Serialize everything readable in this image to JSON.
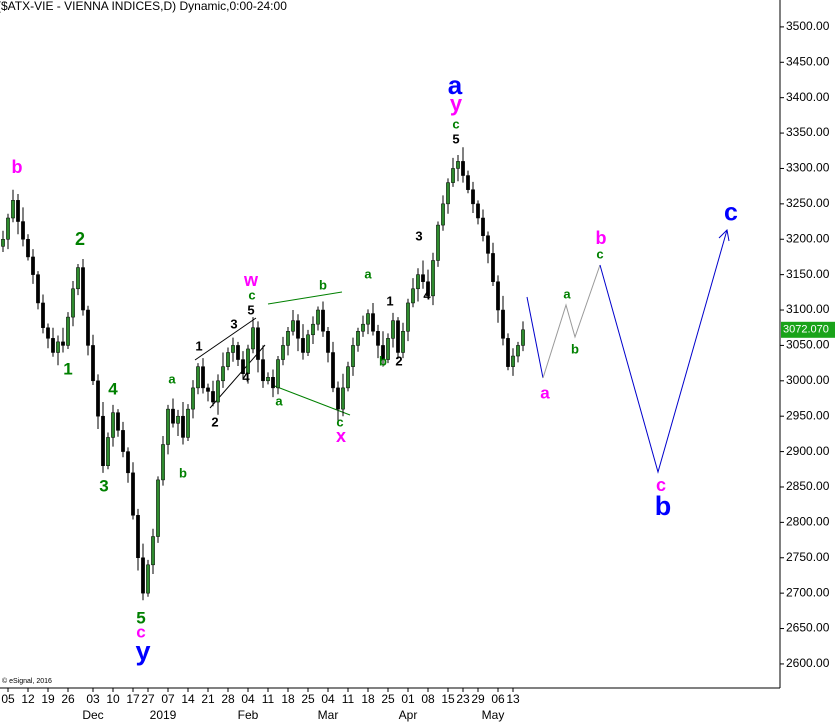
{
  "chart_data": {
    "type": "candlestick",
    "title": "($ATX-VIE - VIENNA INDICES,D) Dynamic,0:00-24:00",
    "footer": "© eSignal, 2016",
    "up_color": "#2e8b2e",
    "down_color": "#000000",
    "x": [
      0,
      1,
      2,
      3,
      4,
      5,
      6,
      7,
      8,
      9,
      10,
      11,
      12,
      13,
      14,
      15,
      16,
      17,
      18,
      19,
      20,
      21,
      22,
      23,
      24,
      25,
      26,
      27,
      28,
      29,
      30,
      31,
      32,
      33,
      34,
      35,
      36,
      37,
      38,
      39,
      40,
      41,
      42,
      43,
      44,
      45,
      46,
      47,
      48,
      49,
      50,
      51,
      52,
      53,
      54,
      55,
      56,
      57,
      58,
      59,
      60,
      61,
      62,
      63,
      64,
      65,
      66,
      67,
      68,
      69,
      70,
      71,
      72,
      73,
      74,
      75,
      76,
      77,
      78,
      79,
      80,
      81,
      82,
      83,
      84,
      85,
      86,
      87,
      88,
      89,
      90,
      91,
      92,
      93,
      94,
      95,
      96,
      97,
      98,
      99,
      100,
      101,
      102,
      103,
      104
    ],
    "open": [
      3190,
      3200,
      3230,
      3255,
      3225,
      3200,
      3175,
      3150,
      3110,
      3075,
      3060,
      3040,
      3055,
      3050,
      3090,
      3130,
      3160,
      3100,
      3050,
      3000,
      2950,
      2880,
      2920,
      2955,
      2930,
      2900,
      2870,
      2810,
      2750,
      2700,
      2740,
      2780,
      2860,
      2910,
      2960,
      2940,
      2950,
      2920,
      2960,
      2990,
      3020,
      2990,
      2985,
      2970,
      3000,
      3020,
      3040,
      3050,
      3030,
      3010,
      3045,
      3075,
      3030,
      3000,
      3005,
      2990,
      3030,
      3050,
      3070,
      3085,
      3060,
      3040,
      3065,
      3080,
      3100,
      3070,
      3040,
      2990,
      2960,
      2990,
      3020,
      3050,
      3070,
      3080,
      3095,
      3070,
      3050,
      3030,
      3060,
      3085,
      3040,
      3070,
      3110,
      3130,
      3150,
      3140,
      3120,
      3170,
      3220,
      3250,
      3280,
      3300,
      3310,
      3290,
      3270,
      3250,
      3230,
      3205,
      3180,
      3140,
      3100,
      3060,
      3020,
      3035,
      3050
    ],
    "high": [
      3212,
      3236,
      3270,
      3264,
      3245,
      3207,
      3186,
      3155,
      3122,
      3081,
      3075,
      3064,
      3075,
      3097,
      3141,
      3165,
      3172,
      3106,
      3065,
      3009,
      2970,
      2927,
      2966,
      2960,
      2942,
      2906,
      2885,
      2819,
      2770,
      2747,
      2791,
      2865,
      2922,
      2966,
      2975,
      2959,
      2970,
      2967,
      3001,
      3025,
      3032,
      2996,
      3000,
      3009,
      3040,
      3047,
      3061,
      3055,
      3042,
      3051,
      3090,
      3084,
      3050,
      3012,
      3016,
      3035,
      3062,
      3076,
      3100,
      3094,
      3080,
      3072,
      3091,
      3105,
      3112,
      3076,
      3055,
      2999,
      3010,
      3027,
      3061,
      3075,
      3092,
      3101,
      3110,
      3079,
      3070,
      3067,
      3096,
      3090,
      3082,
      3116,
      3145,
      3159,
      3170,
      3157,
      3181,
      3225,
      3262,
      3286,
      3315,
      3319,
      3330,
      3297,
      3281,
      3255,
      3242,
      3211,
      3195,
      3149,
      3120,
      3067,
      3046,
      3055,
      3084
    ],
    "low": [
      3182,
      3186,
      3224,
      3207,
      3190,
      3170,
      3137,
      3101,
      3067,
      3046,
      3034,
      3022,
      3040,
      3045,
      3077,
      3121,
      3092,
      3036,
      2994,
      2932,
      2870,
      2875,
      2907,
      2921,
      2892,
      2856,
      2804,
      2732,
      2690,
      2695,
      2727,
      2771,
      2852,
      2896,
      2934,
      2922,
      2910,
      2915,
      2947,
      2981,
      2982,
      2971,
      2964,
      2952,
      2990,
      3015,
      3027,
      3021,
      3002,
      2996,
      3039,
      3012,
      2990,
      2995,
      2977,
      2981,
      3022,
      3036,
      3064,
      3042,
      3030,
      3035,
      3052,
      3071,
      3062,
      3026,
      2984,
      2942,
      2950,
      2985,
      3007,
      3041,
      3062,
      3066,
      3064,
      3032,
      3020,
      3025,
      3047,
      3031,
      3032,
      3056,
      3104,
      3112,
      3130,
      3115,
      3107,
      3161,
      3212,
      3236,
      3274,
      3282,
      3280,
      3265,
      3237,
      3221,
      3197,
      3166,
      3134,
      3082,
      3050,
      3015,
      3007,
      3026,
      3042
    ],
    "close": [
      3200,
      3230,
      3255,
      3225,
      3200,
      3175,
      3150,
      3110,
      3075,
      3060,
      3040,
      3055,
      3050,
      3090,
      3130,
      3160,
      3100,
      3050,
      3000,
      2950,
      2880,
      2920,
      2955,
      2930,
      2900,
      2870,
      2810,
      2750,
      2700,
      2740,
      2780,
      2860,
      2910,
      2960,
      2940,
      2950,
      2920,
      2960,
      2990,
      3020,
      2990,
      2985,
      2970,
      3000,
      3020,
      3040,
      3050,
      3030,
      3010,
      3045,
      3075,
      3030,
      3000,
      3005,
      2990,
      3030,
      3050,
      3070,
      3085,
      3060,
      3040,
      3065,
      3080,
      3100,
      3070,
      3040,
      2990,
      2960,
      2990,
      3020,
      3050,
      3070,
      3080,
      3095,
      3070,
      3050,
      3030,
      3060,
      3085,
      3040,
      3070,
      3110,
      3130,
      3150,
      3140,
      3120,
      3170,
      3220,
      3250,
      3280,
      3300,
      3310,
      3290,
      3270,
      3250,
      3230,
      3205,
      3180,
      3140,
      3100,
      3060,
      3020,
      3035,
      3050,
      3072.07
    ],
    "last_label": "3072.070",
    "xlim": [
      -0.6,
      155.4
    ],
    "ylim": [
      2566,
      3538
    ],
    "xticks": [
      {
        "value": 1,
        "label": "05"
      },
      {
        "value": 5,
        "label": "12"
      },
      {
        "value": 9,
        "label": "19"
      },
      {
        "value": 13,
        "label": "26"
      },
      {
        "value": 18,
        "label": "03"
      },
      {
        "value": 22,
        "label": "10"
      },
      {
        "value": 26,
        "label": "17"
      },
      {
        "value": 29,
        "label": "27"
      },
      {
        "value": 33,
        "label": "07"
      },
      {
        "value": 37,
        "label": "14"
      },
      {
        "value": 41,
        "label": "21"
      },
      {
        "value": 45,
        "label": "28"
      },
      {
        "value": 49,
        "label": "04"
      },
      {
        "value": 53,
        "label": "11"
      },
      {
        "value": 57,
        "label": "18"
      },
      {
        "value": 61,
        "label": "25"
      },
      {
        "value": 65,
        "label": "04"
      },
      {
        "value": 69,
        "label": "11"
      },
      {
        "value": 73,
        "label": "18"
      },
      {
        "value": 77,
        "label": "25"
      },
      {
        "value": 81,
        "label": "01"
      },
      {
        "value": 85,
        "label": "08"
      },
      {
        "value": 89,
        "label": "15"
      },
      {
        "value": 92,
        "label": "23"
      },
      {
        "value": 95,
        "label": "29"
      },
      {
        "value": 99,
        "label": "06"
      },
      {
        "value": 102,
        "label": "13"
      }
    ],
    "month_ticks": [
      {
        "value": 18,
        "label": "Dec"
      },
      {
        "value": 32,
        "label": "2019"
      },
      {
        "value": 49,
        "label": "Feb"
      },
      {
        "value": 65,
        "label": "Mar"
      },
      {
        "value": 81,
        "label": "Apr"
      },
      {
        "value": 98,
        "label": "May"
      }
    ],
    "yticks": [
      {
        "value": 2600,
        "label": "2600.00"
      },
      {
        "value": 2650,
        "label": "2650.00"
      },
      {
        "value": 2700,
        "label": "2700.00"
      },
      {
        "value": 2750,
        "label": "2750.00"
      },
      {
        "value": 2800,
        "label": "2800.00"
      },
      {
        "value": 2850,
        "label": "2850.00"
      },
      {
        "value": 2900,
        "label": "2900.00"
      },
      {
        "value": 2950,
        "label": "2950.00"
      },
      {
        "value": 3000,
        "label": "3000.00"
      },
      {
        "value": 3050,
        "label": "3050.00"
      },
      {
        "value": 3100,
        "label": "3100.00"
      },
      {
        "value": 3150,
        "label": "3150.00"
      },
      {
        "value": 3200,
        "label": "3200.00"
      },
      {
        "value": 3250,
        "label": "3250.00"
      },
      {
        "value": 3300,
        "label": "3300.00"
      },
      {
        "value": 3350,
        "label": "3350.00"
      },
      {
        "value": 3400,
        "label": "3400.00"
      },
      {
        "value": 3450,
        "label": "3450.00"
      },
      {
        "value": 3500,
        "label": "3500.00"
      }
    ],
    "annotations": [
      {
        "text": "b",
        "color": "#ff00ff"
      },
      {
        "text": "2",
        "color": "#008000"
      },
      {
        "text": "1",
        "color": "#008000"
      },
      {
        "text": "4",
        "color": "#008000"
      },
      {
        "text": "3",
        "color": "#008000"
      },
      {
        "text": "5",
        "color": "#008000"
      },
      {
        "text": "c",
        "color": "#ff00ff"
      },
      {
        "text": "y",
        "color": "#0000ff"
      },
      {
        "text": "a",
        "color": "#008000"
      },
      {
        "text": "b",
        "color": "#008000"
      },
      {
        "text": "1",
        "color": "#000000"
      },
      {
        "text": "2",
        "color": "#000000"
      },
      {
        "text": "3",
        "color": "#000000"
      },
      {
        "text": "4",
        "color": "#000000"
      },
      {
        "text": "5",
        "color": "#000000"
      },
      {
        "text": "c",
        "color": "#008000"
      },
      {
        "text": "w",
        "color": "#ff00ff"
      },
      {
        "text": "b",
        "color": "#008000"
      },
      {
        "text": "a",
        "color": "#008000"
      },
      {
        "text": "c",
        "color": "#008000"
      },
      {
        "text": "x",
        "color": "#ff00ff"
      },
      {
        "text": "a",
        "color": "#008000"
      },
      {
        "text": "1",
        "color": "#000000"
      },
      {
        "text": "b",
        "color": "#008000"
      },
      {
        "text": "2",
        "color": "#000000"
      },
      {
        "text": "3",
        "color": "#000000"
      },
      {
        "text": "4",
        "color": "#000000"
      },
      {
        "text": "5",
        "color": "#000000"
      },
      {
        "text": "c",
        "color": "#008000"
      },
      {
        "text": "y",
        "color": "#ff00ff"
      },
      {
        "text": "a",
        "color": "#0000ff"
      },
      {
        "text": "a",
        "color": "#ff00ff"
      },
      {
        "text": "a",
        "color": "#008000"
      },
      {
        "text": "b",
        "color": "#008000"
      },
      {
        "text": "b",
        "color": "#ff00ff"
      },
      {
        "text": "c",
        "color": "#008000"
      },
      {
        "text": "c",
        "color": "#ff00ff"
      },
      {
        "text": "b",
        "color": "#0000ff"
      },
      {
        "text": "c",
        "color": "#0000ff"
      }
    ]
  }
}
